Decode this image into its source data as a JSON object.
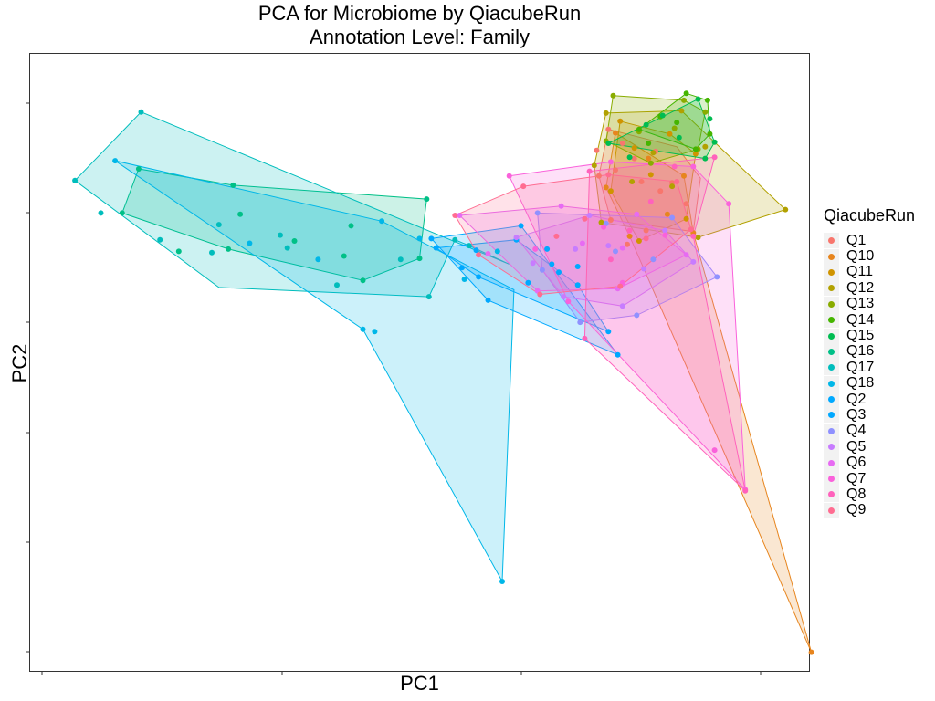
{
  "chart_data": {
    "type": "scatter",
    "title": "PCA for Microbiome by QiacubeRun",
    "subtitle": "Annotation Level: Family",
    "xlabel": "PC1",
    "ylabel": "PC2",
    "xlim": [
      -2,
      31
    ],
    "ylim": [
      -25.8,
      27.3
    ],
    "grid": false,
    "legend_title": "QiacubeRun",
    "legend_position": "right",
    "series": [
      {
        "name": "Q1",
        "color": "#F8766D",
        "points": [
          [
            22.5,
            20.8
          ],
          [
            23.1,
            19.6
          ],
          [
            22.0,
            19.0
          ],
          [
            23.6,
            18.3
          ],
          [
            22.8,
            17.3
          ],
          [
            23.9,
            16.3
          ],
          [
            24.7,
            15.5
          ],
          [
            22.6,
            13.0
          ],
          [
            24.1,
            12.1
          ],
          [
            23.3,
            10.9
          ],
          [
            24.5,
            18.9
          ],
          [
            25.2,
            16.2
          ],
          [
            25.8,
            14.4
          ],
          [
            22.1,
            16.8
          ]
        ],
        "hull": [
          [
            22.5,
            20.8
          ],
          [
            25.4,
            19.3
          ],
          [
            26.4,
            16.6
          ],
          [
            26.1,
            12.0
          ],
          [
            22.6,
            13.0
          ],
          [
            22.1,
            16.8
          ]
        ]
      },
      {
        "name": "Q10",
        "color": "#E7851E",
        "points": [
          [
            31.1,
            -24.2
          ],
          [
            22.8,
            20.5
          ],
          [
            24.2,
            18.3
          ],
          [
            25.7,
            16.8
          ],
          [
            25.0,
            13.5
          ],
          [
            23.4,
            11.6
          ],
          [
            26.1,
            11.9
          ],
          [
            22.4,
            15.8
          ]
        ],
        "hull": [
          [
            22.8,
            20.5
          ],
          [
            25.7,
            16.8
          ],
          [
            26.1,
            11.9
          ],
          [
            31.1,
            -24.2
          ],
          [
            23.4,
            11.6
          ],
          [
            22.4,
            15.8
          ]
        ]
      },
      {
        "name": "Q11",
        "color": "#D09400",
        "points": [
          [
            23.0,
            21.5
          ],
          [
            25.1,
            20.4
          ],
          [
            26.2,
            18.7
          ],
          [
            25.8,
            13.1
          ],
          [
            23.8,
            11.2
          ],
          [
            22.6,
            15.5
          ],
          [
            24.3,
            16.9
          ],
          [
            23.6,
            19.2
          ]
        ],
        "hull": [
          [
            23.0,
            21.5
          ],
          [
            25.1,
            20.4
          ],
          [
            26.2,
            18.7
          ],
          [
            25.8,
            13.1
          ],
          [
            23.8,
            11.2
          ],
          [
            22.6,
            15.5
          ]
        ]
      },
      {
        "name": "Q12",
        "color": "#B2A100",
        "points": [
          [
            22.4,
            22.2
          ],
          [
            25.6,
            22.4
          ],
          [
            26.6,
            19.3
          ],
          [
            30.0,
            13.9
          ],
          [
            26.3,
            11.5
          ],
          [
            22.2,
            12.8
          ],
          [
            21.9,
            17.7
          ],
          [
            24.4,
            18.8
          ],
          [
            23.5,
            16.3
          ],
          [
            25.2,
            15.9
          ]
        ],
        "hull": [
          [
            22.4,
            22.2
          ],
          [
            25.6,
            22.4
          ],
          [
            30.0,
            13.9
          ],
          [
            26.3,
            11.5
          ],
          [
            22.2,
            12.8
          ],
          [
            21.9,
            17.7
          ]
        ]
      },
      {
        "name": "Q13",
        "color": "#89AC00",
        "points": [
          [
            22.7,
            23.7
          ],
          [
            25.7,
            23.3
          ],
          [
            26.6,
            22.3
          ],
          [
            26.3,
            19.1
          ],
          [
            24.3,
            17.9
          ],
          [
            22.4,
            19.8
          ],
          [
            23.8,
            20.6
          ],
          [
            25.3,
            20.9
          ]
        ],
        "hull": [
          [
            22.7,
            23.7
          ],
          [
            25.7,
            23.3
          ],
          [
            26.6,
            22.3
          ],
          [
            26.3,
            19.1
          ],
          [
            24.3,
            17.9
          ],
          [
            22.4,
            19.8
          ]
        ]
      },
      {
        "name": "Q14",
        "color": "#45B500",
        "points": [
          [
            25.8,
            23.9
          ],
          [
            26.7,
            23.3
          ],
          [
            26.8,
            20.4
          ],
          [
            26.2,
            19.1
          ],
          [
            23.8,
            20.8
          ],
          [
            24.7,
            21.9
          ],
          [
            25.4,
            21.4
          ],
          [
            24.2,
            19.6
          ]
        ],
        "hull": [
          [
            25.8,
            23.9
          ],
          [
            26.7,
            23.3
          ],
          [
            26.8,
            20.4
          ],
          [
            26.2,
            19.1
          ],
          [
            23.8,
            20.8
          ]
        ]
      },
      {
        "name": "Q15",
        "color": "#00BC51",
        "points": [
          [
            26.3,
            23.4
          ],
          [
            26.8,
            21.7
          ],
          [
            27.0,
            19.7
          ],
          [
            26.6,
            18.3
          ],
          [
            22.5,
            19.6
          ],
          [
            24.1,
            21.2
          ],
          [
            25.5,
            20.1
          ],
          [
            24.8,
            22.0
          ],
          [
            23.4,
            18.4
          ]
        ],
        "hull": [
          [
            26.3,
            23.4
          ],
          [
            27.0,
            19.7
          ],
          [
            26.6,
            18.3
          ],
          [
            22.5,
            19.6
          ],
          [
            24.1,
            21.2
          ]
        ]
      },
      {
        "name": "Q16",
        "color": "#00C087",
        "points": [
          [
            6.6,
            16.0
          ],
          [
            2.6,
            17.4
          ],
          [
            1.9,
            13.6
          ],
          [
            6.4,
            10.5
          ],
          [
            14.8,
            14.8
          ],
          [
            14.5,
            9.7
          ],
          [
            12.1,
            7.8
          ],
          [
            9.2,
            11.2
          ],
          [
            11.6,
            12.5
          ],
          [
            6.9,
            13.5
          ],
          [
            11.3,
            9.9
          ],
          [
            4.3,
            10.3
          ]
        ],
        "hull": [
          [
            6.6,
            16.0
          ],
          [
            14.8,
            14.8
          ],
          [
            14.5,
            9.7
          ],
          [
            12.1,
            7.8
          ],
          [
            6.4,
            10.5
          ],
          [
            1.9,
            13.6
          ],
          [
            2.6,
            17.4
          ]
        ]
      },
      {
        "name": "Q17",
        "color": "#00BDBC",
        "points": [
          [
            2.7,
            22.3
          ],
          [
            -0.1,
            16.4
          ],
          [
            1.0,
            13.6
          ],
          [
            6.0,
            12.6
          ],
          [
            13.7,
            9.6
          ],
          [
            16.0,
            11.3
          ],
          [
            16.6,
            10.8
          ],
          [
            14.9,
            6.4
          ],
          [
            11.0,
            7.4
          ],
          [
            8.6,
            11.7
          ],
          [
            5.7,
            10.2
          ],
          [
            3.5,
            11.3
          ],
          [
            8.9,
            10.6
          ]
        ],
        "hull": [
          [
            2.7,
            22.3
          ],
          [
            18.3,
            9.2
          ],
          [
            16.6,
            10.8
          ],
          [
            16.0,
            11.3
          ],
          [
            14.9,
            6.4
          ],
          [
            6.0,
            7.2
          ],
          [
            -0.1,
            16.4
          ]
        ]
      },
      {
        "name": "Q18",
        "color": "#00B7E8",
        "points": [
          [
            1.6,
            18.1
          ],
          [
            12.9,
            12.9
          ],
          [
            17.8,
            10.3
          ],
          [
            12.1,
            3.6
          ],
          [
            12.6,
            3.4
          ],
          [
            18.0,
            -18.1
          ],
          [
            14.5,
            11.4
          ],
          [
            10.2,
            9.6
          ],
          [
            7.3,
            11.0
          ],
          [
            16.4,
            7.9
          ]
        ],
        "hull": [
          [
            1.6,
            18.1
          ],
          [
            12.9,
            12.9
          ],
          [
            18.5,
            7.0
          ],
          [
            18.0,
            -18.1
          ],
          [
            12.1,
            3.6
          ]
        ]
      },
      {
        "name": "Q2",
        "color": "#00A9FF",
        "points": [
          [
            15.2,
            10.6
          ],
          [
            18.6,
            11.3
          ],
          [
            21.2,
            7.4
          ],
          [
            22.5,
            3.4
          ],
          [
            17.0,
            8.1
          ],
          [
            19.1,
            7.6
          ],
          [
            20.1,
            9.2
          ],
          [
            16.9,
            10.4
          ]
        ],
        "hull": [
          [
            15.2,
            10.6
          ],
          [
            18.6,
            11.3
          ],
          [
            21.2,
            7.4
          ],
          [
            22.5,
            3.4
          ],
          [
            17.0,
            8.1
          ]
        ]
      },
      {
        "name": "Q3",
        "color": "#00A8FF",
        "points": [
          [
            15.0,
            11.4
          ],
          [
            18.8,
            12.5
          ],
          [
            20.4,
            8.5
          ],
          [
            22.9,
            1.4
          ],
          [
            17.4,
            6.1
          ],
          [
            16.3,
            8.9
          ],
          [
            19.9,
            10.5
          ],
          [
            21.2,
            9.0
          ]
        ],
        "hull": [
          [
            15.0,
            11.4
          ],
          [
            18.8,
            12.5
          ],
          [
            22.9,
            1.4
          ],
          [
            17.4,
            6.1
          ]
        ]
      },
      {
        "name": "Q4",
        "color": "#8F91FF",
        "points": [
          [
            19.5,
            13.6
          ],
          [
            22.4,
            12.7
          ],
          [
            25.2,
            13.2
          ],
          [
            27.1,
            8.1
          ],
          [
            23.7,
            4.8
          ],
          [
            21.3,
            4.2
          ],
          [
            19.7,
            8.7
          ],
          [
            22.8,
            10.3
          ],
          [
            24.4,
            9.6
          ]
        ],
        "hull": [
          [
            19.5,
            13.6
          ],
          [
            25.2,
            13.2
          ],
          [
            27.1,
            8.1
          ],
          [
            23.7,
            4.8
          ],
          [
            21.3,
            4.2
          ],
          [
            19.7,
            8.7
          ]
        ]
      },
      {
        "name": "Q5",
        "color": "#C77CFF",
        "points": [
          [
            18.6,
            11.5
          ],
          [
            21.7,
            13.4
          ],
          [
            24.9,
            12.1
          ],
          [
            26.1,
            9.4
          ],
          [
            23.1,
            5.6
          ],
          [
            20.6,
            6.4
          ],
          [
            19.3,
            9.3
          ],
          [
            22.5,
            10.8
          ],
          [
            24.0,
            8.8
          ],
          [
            21.1,
            10.5
          ]
        ],
        "hull": [
          [
            18.6,
            11.5
          ],
          [
            21.7,
            13.4
          ],
          [
            24.9,
            12.1
          ],
          [
            26.1,
            9.4
          ],
          [
            23.1,
            5.6
          ],
          [
            20.6,
            6.4
          ]
        ]
      },
      {
        "name": "Q6",
        "color": "#E76BF3",
        "points": [
          [
            16.2,
            13.4
          ],
          [
            20.5,
            14.2
          ],
          [
            23.7,
            13.5
          ],
          [
            25.8,
            10.0
          ],
          [
            22.9,
            7.1
          ],
          [
            19.5,
            6.9
          ],
          [
            17.4,
            10.1
          ],
          [
            21.4,
            11.0
          ],
          [
            23.1,
            10.6
          ]
        ],
        "hull": [
          [
            16.2,
            13.4
          ],
          [
            20.5,
            14.2
          ],
          [
            23.7,
            13.5
          ],
          [
            25.8,
            10.0
          ],
          [
            22.9,
            7.1
          ],
          [
            19.5,
            6.9
          ]
        ]
      },
      {
        "name": "Q7",
        "color": "#FA62DB",
        "points": [
          [
            18.3,
            16.8
          ],
          [
            22.6,
            18.0
          ],
          [
            26.1,
            17.6
          ],
          [
            27.6,
            14.4
          ],
          [
            28.3,
            -10.2
          ],
          [
            27.0,
            -6.8
          ],
          [
            23.1,
            7.6
          ],
          [
            20.8,
            6.0
          ],
          [
            19.4,
            10.5
          ],
          [
            22.3,
            12.4
          ],
          [
            24.9,
            11.7
          ]
        ],
        "hull": [
          [
            18.3,
            16.8
          ],
          [
            22.6,
            18.0
          ],
          [
            26.1,
            17.6
          ],
          [
            27.6,
            14.4
          ],
          [
            28.3,
            -10.2
          ],
          [
            20.8,
            6.0
          ]
        ]
      },
      {
        "name": "Q8",
        "color": "#FF62BC",
        "points": [
          [
            21.7,
            17.2
          ],
          [
            25.3,
            17.6
          ],
          [
            27.0,
            18.4
          ],
          [
            26.1,
            11.6
          ],
          [
            28.3,
            -10.3
          ],
          [
            21.5,
            2.8
          ],
          [
            22.6,
            9.6
          ],
          [
            24.3,
            14.6
          ],
          [
            23.4,
            12.1
          ]
        ],
        "hull": [
          [
            21.7,
            17.2
          ],
          [
            27.0,
            18.4
          ],
          [
            26.1,
            11.6
          ],
          [
            28.3,
            -10.3
          ],
          [
            21.5,
            2.8
          ]
        ]
      },
      {
        "name": "Q9",
        "color": "#FF6C91",
        "points": [
          [
            16.0,
            13.4
          ],
          [
            18.9,
            15.9
          ],
          [
            22.5,
            16.9
          ],
          [
            25.4,
            16.3
          ],
          [
            26.0,
            12.2
          ],
          [
            23.0,
            7.3
          ],
          [
            19.6,
            6.6
          ],
          [
            17.0,
            10.0
          ],
          [
            21.5,
            13.1
          ],
          [
            24.1,
            11.4
          ],
          [
            20.3,
            11.6
          ]
        ],
        "hull": [
          [
            16.0,
            13.4
          ],
          [
            18.9,
            15.9
          ],
          [
            22.5,
            16.9
          ],
          [
            25.4,
            16.3
          ],
          [
            26.0,
            12.2
          ],
          [
            23.0,
            7.3
          ],
          [
            19.6,
            6.6
          ],
          [
            17.0,
            10.0
          ]
        ]
      }
    ]
  }
}
